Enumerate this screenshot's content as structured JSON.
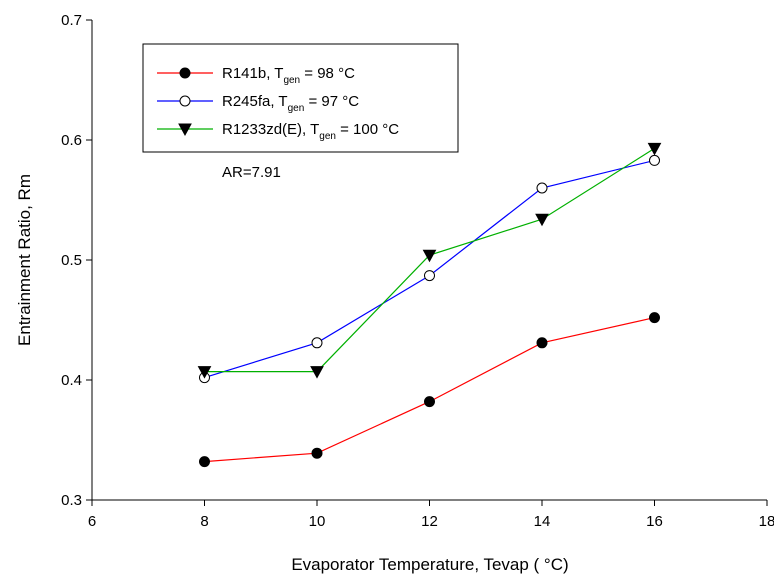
{
  "chart_data": {
    "type": "line",
    "xlabel": "Evaporator Temperature, Tevap ( °C)",
    "ylabel": "Entrainment Ratio, Rm",
    "annotation": "AR=7.91",
    "x": [
      8,
      10,
      12,
      14,
      16
    ],
    "xlim": [
      6,
      18
    ],
    "xticks": [
      6,
      8,
      10,
      12,
      14,
      16,
      18
    ],
    "ylim": [
      0.3,
      0.7
    ],
    "yticks": [
      0.3,
      0.4,
      0.5,
      0.6,
      0.7
    ],
    "series": [
      {
        "name": {
          "text": "R141b, T",
          "sub": "gen",
          "after": " = 98 °C"
        },
        "color": "#ff0000",
        "marker": "circle",
        "marker_fill": "#000000",
        "values": [
          0.332,
          0.339,
          0.382,
          0.431,
          0.452
        ]
      },
      {
        "name": {
          "text": "R245fa, T",
          "sub": "gen",
          "after": " = 97 °C"
        },
        "color": "#0000ff",
        "marker": "circle",
        "marker_fill": "#ffffff",
        "values": [
          0.402,
          0.431,
          0.487,
          0.56,
          0.583
        ]
      },
      {
        "name": {
          "text": "R1233zd(E), T",
          "sub": "gen",
          "after": " = 100 °C"
        },
        "color": "#00b000",
        "marker": "triangle-down",
        "marker_fill": "#000000",
        "values": [
          0.407,
          0.407,
          0.504,
          0.534,
          0.593
        ]
      }
    ]
  }
}
